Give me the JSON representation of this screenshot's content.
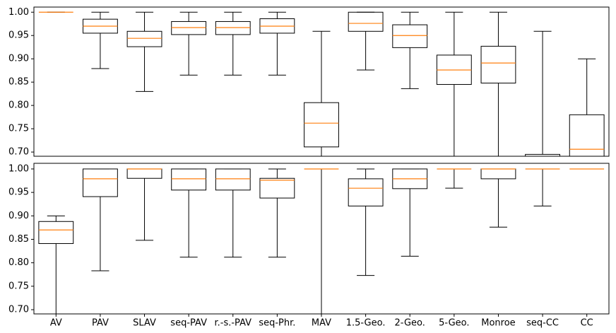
{
  "chart_data": [
    {
      "type": "box",
      "color": "#000000",
      "median_color": "#ff7f0e",
      "ylim": [
        0.691,
        1.011
      ],
      "yticks": [
        {
          "value": 0.7,
          "label": "0.70"
        },
        {
          "value": 0.75,
          "label": "0.75"
        },
        {
          "value": 0.8,
          "label": "0.80"
        },
        {
          "value": 0.85,
          "label": "0.85"
        },
        {
          "value": 0.9,
          "label": "0.90"
        },
        {
          "value": 0.95,
          "label": "0.95"
        },
        {
          "value": 1.0,
          "label": "1.00"
        }
      ],
      "boxes": [
        {
          "whislo": 1.0,
          "q1": 1.0,
          "med": 1.0,
          "q3": 1.0,
          "whishi": 1.0
        },
        {
          "whislo": 0.879,
          "q1": 0.955,
          "med": 0.97,
          "q3": 0.985,
          "whishi": 1.0
        },
        {
          "whislo": 0.83,
          "q1": 0.926,
          "med": 0.944,
          "q3": 0.959,
          "whishi": 1.0
        },
        {
          "whislo": 0.865,
          "q1": 0.952,
          "med": 0.967,
          "q3": 0.98,
          "whishi": 1.0
        },
        {
          "whislo": 0.865,
          "q1": 0.952,
          "med": 0.967,
          "q3": 0.98,
          "whishi": 1.0
        },
        {
          "whislo": 0.865,
          "q1": 0.955,
          "med": 0.97,
          "q3": 0.986,
          "whishi": 1.0
        },
        {
          "whislo": 0.69,
          "q1": 0.711,
          "med": 0.762,
          "q3": 0.806,
          "whishi": 0.959
        },
        {
          "whislo": 0.876,
          "q1": 0.959,
          "med": 0.976,
          "q3": 1.0,
          "whishi": 1.0
        },
        {
          "whislo": 0.836,
          "q1": 0.924,
          "med": 0.95,
          "q3": 0.973,
          "whishi": 1.0
        },
        {
          "whislo": 0.69,
          "q1": 0.845,
          "med": 0.876,
          "q3": 0.908,
          "whishi": 1.0
        },
        {
          "whislo": 0.69,
          "q1": 0.848,
          "med": 0.891,
          "q3": 0.927,
          "whishi": 1.0
        },
        {
          "whislo": 0.69,
          "q1": 0.69,
          "med": 0.69,
          "q3": 0.695,
          "whishi": 0.959
        },
        {
          "whislo": 0.69,
          "q1": 0.69,
          "med": 0.706,
          "q3": 0.78,
          "whishi": 0.9
        }
      ]
    },
    {
      "type": "box",
      "color": "#000000",
      "median_color": "#ff7f0e",
      "ylim": [
        0.691,
        1.012
      ],
      "yticks": [
        {
          "value": 0.7,
          "label": "0.70"
        },
        {
          "value": 0.75,
          "label": "0.75"
        },
        {
          "value": 0.8,
          "label": "0.80"
        },
        {
          "value": 0.85,
          "label": "0.85"
        },
        {
          "value": 0.9,
          "label": "0.90"
        },
        {
          "value": 0.95,
          "label": "0.95"
        },
        {
          "value": 1.0,
          "label": "1.00"
        }
      ],
      "categories": [
        "AV",
        "PAV",
        "SLAV",
        "seq-PAV",
        "r.-s.-PAV",
        "seq-Phr.",
        "MAV",
        "1.5-Geo.",
        "2-Geo.",
        "5-Geo.",
        "Monroe",
        "seq-CC",
        "CC"
      ],
      "boxes": [
        {
          "whislo": 0.69,
          "q1": 0.841,
          "med": 0.87,
          "q3": 0.888,
          "whishi": 0.9
        },
        {
          "whislo": 0.783,
          "q1": 0.941,
          "med": 0.979,
          "q3": 1.0,
          "whishi": 1.0
        },
        {
          "whislo": 0.848,
          "q1": 0.98,
          "med": 1.0,
          "q3": 1.0,
          "whishi": 1.0
        },
        {
          "whislo": 0.812,
          "q1": 0.955,
          "med": 0.979,
          "q3": 1.0,
          "whishi": 1.0
        },
        {
          "whislo": 0.812,
          "q1": 0.955,
          "med": 0.979,
          "q3": 1.0,
          "whishi": 1.0
        },
        {
          "whislo": 0.812,
          "q1": 0.938,
          "med": 0.976,
          "q3": 0.98,
          "whishi": 1.0
        },
        {
          "whislo": 0.69,
          "q1": 1.0,
          "med": 1.0,
          "q3": 1.0,
          "whishi": 1.0
        },
        {
          "whislo": 0.773,
          "q1": 0.921,
          "med": 0.959,
          "q3": 0.979,
          "whishi": 1.0
        },
        {
          "whislo": 0.814,
          "q1": 0.958,
          "med": 0.979,
          "q3": 1.0,
          "whishi": 1.0
        },
        {
          "whislo": 0.959,
          "q1": 1.0,
          "med": 1.0,
          "q3": 1.0,
          "whishi": 1.0
        },
        {
          "whislo": 0.876,
          "q1": 0.979,
          "med": 1.0,
          "q3": 1.0,
          "whishi": 1.0
        },
        {
          "whislo": 0.921,
          "q1": 1.0,
          "med": 1.0,
          "q3": 1.0,
          "whishi": 1.0
        },
        {
          "whislo": 1.0,
          "q1": 1.0,
          "med": 1.0,
          "q3": 1.0,
          "whishi": 1.0
        }
      ]
    }
  ]
}
